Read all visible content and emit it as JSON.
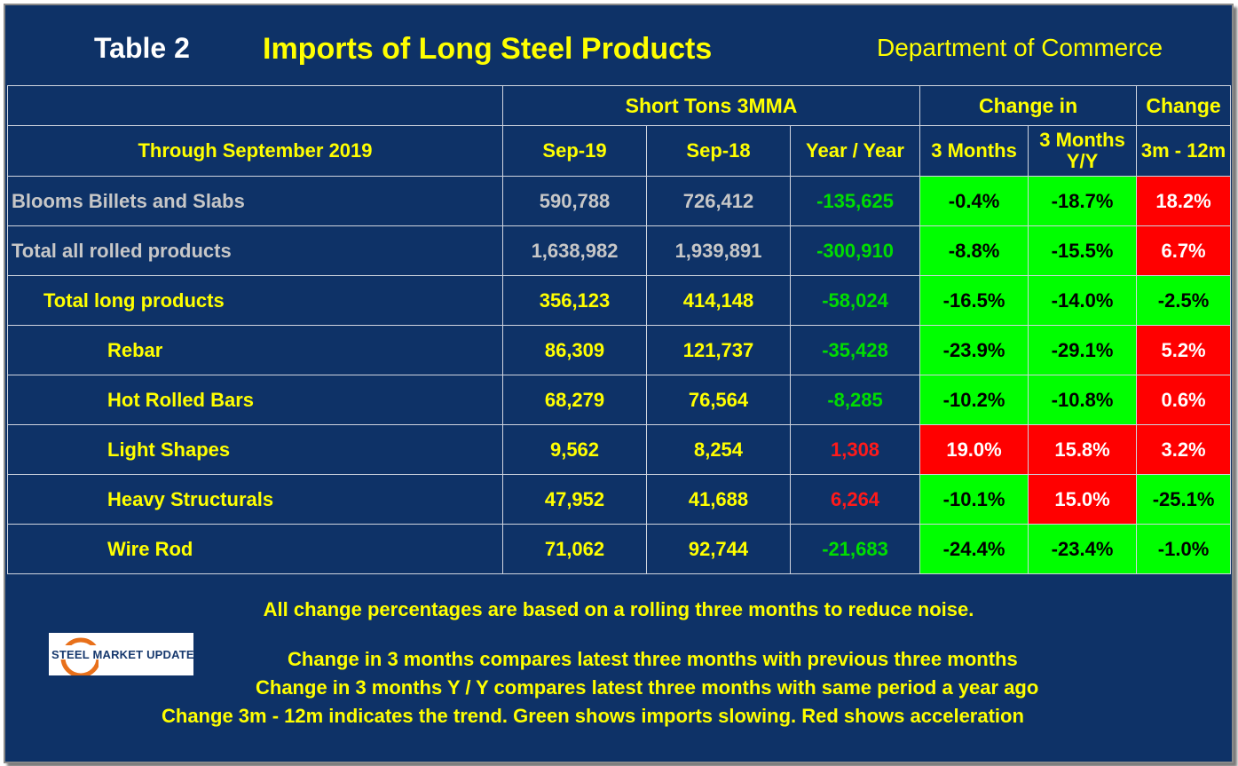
{
  "header": {
    "table_number": "Table 2",
    "title": "Imports of Long Steel Products",
    "source": "Department of Commerce"
  },
  "columns": {
    "group_short_tons": "Short Tons 3MMA",
    "group_change_in": "Change in",
    "group_change": "Change",
    "period": "Through September 2019",
    "col_sep19": "Sep-19",
    "col_sep18": "Sep-18",
    "col_yoy": "Year / Year",
    "col_3m": "3 Months",
    "col_3m_yy_line1": "3 Months",
    "col_3m_yy_line2": "Y/Y",
    "col_3m_12m": "3m - 12m"
  },
  "rows": [
    {
      "label": "Blooms Billets and Slabs",
      "sep19": "590,788",
      "sep18": "726,412",
      "yoy": "-135,625",
      "m3": "-0.4%",
      "m3yy": "-18.7%",
      "trend": "18.2%"
    },
    {
      "label": "Total all rolled products",
      "sep19": "1,638,982",
      "sep18": "1,939,891",
      "yoy": "-300,910",
      "m3": "-8.8%",
      "m3yy": "-15.5%",
      "trend": "6.7%"
    },
    {
      "label": "Total long products",
      "sep19": "356,123",
      "sep18": "414,148",
      "yoy": "-58,024",
      "m3": "-16.5%",
      "m3yy": "-14.0%",
      "trend": "-2.5%"
    },
    {
      "label": "Rebar",
      "sep19": "86,309",
      "sep18": "121,737",
      "yoy": "-35,428",
      "m3": "-23.9%",
      "m3yy": "-29.1%",
      "trend": "5.2%"
    },
    {
      "label": "Hot Rolled Bars",
      "sep19": "68,279",
      "sep18": "76,564",
      "yoy": "-8,285",
      "m3": "-10.2%",
      "m3yy": "-10.8%",
      "trend": "0.6%"
    },
    {
      "label": "Light Shapes",
      "sep19": "9,562",
      "sep18": "8,254",
      "yoy": "1,308",
      "m3": "19.0%",
      "m3yy": "15.8%",
      "trend": "3.2%"
    },
    {
      "label": "Heavy Structurals",
      "sep19": "47,952",
      "sep18": "41,688",
      "yoy": "6,264",
      "m3": "-10.1%",
      "m3yy": "15.0%",
      "trend": "-25.1%"
    },
    {
      "label": "Wire Rod",
      "sep19": "71,062",
      "sep18": "92,744",
      "yoy": "-21,683",
      "m3": "-24.4%",
      "m3yy": "-23.4%",
      "trend": "-1.0%"
    }
  ],
  "notes": [
    "All change percentages are based on a rolling three months to reduce noise.",
    "Change in 3 months compares latest three months with previous three months",
    "Change in 3 months  Y / Y compares latest three months with same period a year ago",
    "Change 3m - 12m indicates the trend. Green shows imports slowing. Red shows acceleration"
  ],
  "logo": {
    "text": "STEEL MARKET UPDATE"
  },
  "colors": {
    "background": "#0e3267",
    "title_yellow": "#ffff00",
    "good_green": "#00ff00",
    "bad_red": "#ff0000",
    "decline_text": "#00dd00",
    "increase_text": "#ff1a1a"
  }
}
